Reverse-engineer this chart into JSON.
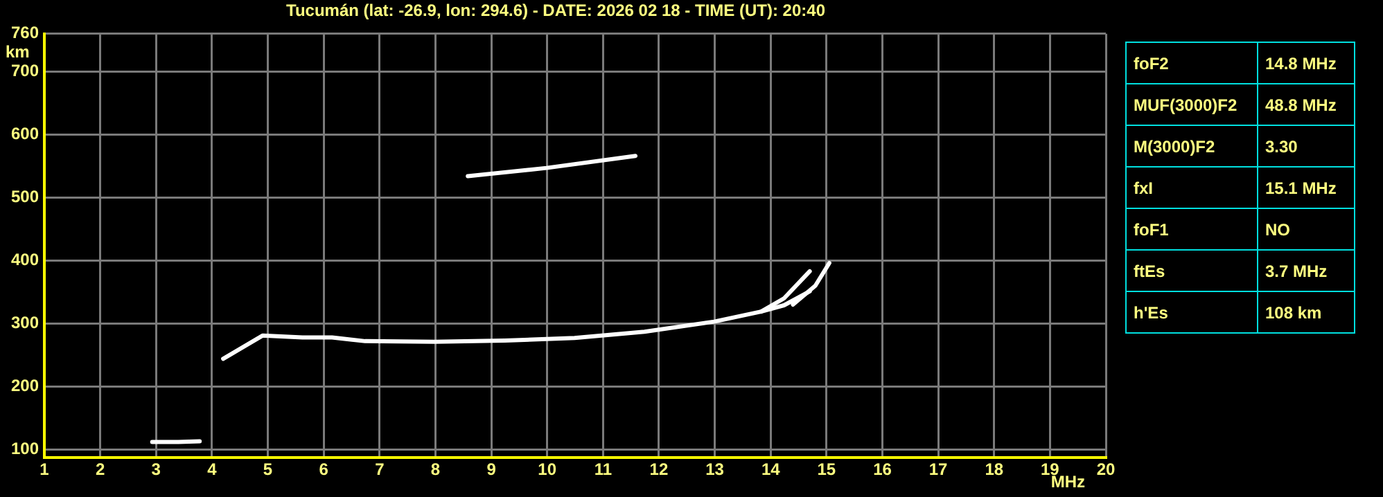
{
  "chart_data": [
    {
      "type": "line",
      "title": "Tucumán (lat: -26.9, lon: 294.6) - DATE: 2026 02 18 - TIME (UT): 20:40",
      "xlabel": "MHz",
      "ylabel": "km",
      "xlim": [
        1,
        20
      ],
      "xticks": [
        1,
        2,
        3,
        4,
        5,
        6,
        7,
        8,
        9,
        10,
        11,
        12,
        13,
        14,
        15,
        16,
        17,
        18,
        19,
        20
      ],
      "ylim": [
        87,
        760
      ],
      "yticks": [
        100,
        200,
        300,
        400,
        500,
        600,
        700,
        760
      ],
      "grid": true,
      "marker": "none",
      "line_style": "solid",
      "legend": false,
      "series": [
        {
          "color": "#ffffff",
          "x": [
            2.93,
            3.4,
            3.78
          ],
          "values": [
            112,
            112,
            113
          ]
        },
        {
          "color": "#ffffff",
          "x": [
            4.2,
            4.91,
            5.62,
            6.15,
            6.74,
            7.99,
            9.24,
            10.49,
            11.74,
            12.99,
            13.83,
            14.24,
            14.7
          ],
          "values": [
            244,
            281,
            278,
            278,
            272,
            271,
            273,
            277,
            287,
            303,
            319,
            329,
            351
          ]
        },
        {
          "color": "#ffffff",
          "x": [
            13.83,
            14.24,
            14.7
          ],
          "values": [
            319,
            340,
            383
          ]
        },
        {
          "color": "#ffffff",
          "x": [
            14.4,
            14.8,
            15.05
          ],
          "values": [
            330,
            360,
            396
          ]
        },
        {
          "color": "#ffffff",
          "x": [
            8.58,
            9.99,
            11.58
          ],
          "values": [
            534,
            547,
            566
          ]
        }
      ]
    },
    {
      "type": "other",
      "annotations": [
        "foF2",
        "14.8 MHz",
        "MUF(3000)F2",
        "48.8 MHz",
        "M(3000)F2",
        "3.30",
        "fxI",
        "15.1 MHz",
        "foF1",
        "NO",
        "ftEs",
        "3.7 MHz",
        "h'Es",
        "108 km"
      ]
    }
  ]
}
